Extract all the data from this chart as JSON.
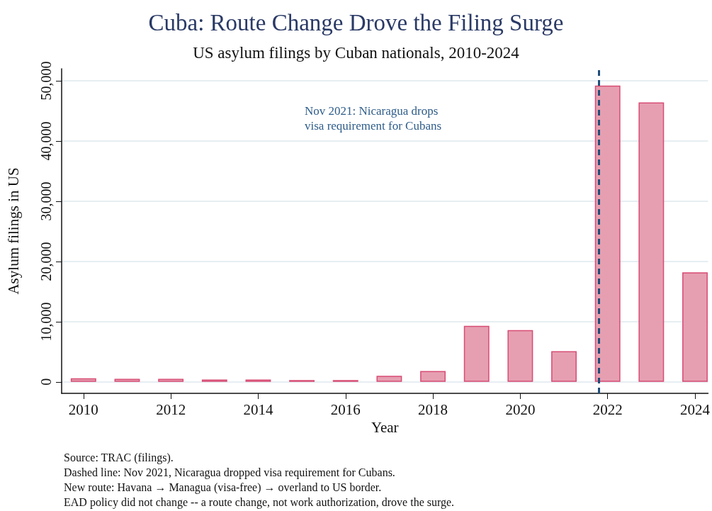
{
  "chart_data": {
    "type": "bar",
    "title": "Cuba: Route Change Drove the Filing Surge",
    "subtitle": "US asylum filings by Cuban nationals, 2010-2024",
    "xlabel": "Year",
    "ylabel": "Asylum filings in US",
    "x": [
      2010,
      2011,
      2012,
      2013,
      2014,
      2015,
      2016,
      2017,
      2018,
      2019,
      2020,
      2021,
      2022,
      2023,
      2024
    ],
    "series": [
      {
        "color": "#e59aad",
        "values": [
          600,
          500,
          500,
          400,
          400,
          300,
          300,
          1000,
          1800,
          9300,
          8600,
          5100,
          49200,
          46400,
          18200
        ]
      }
    ],
    "xlim": [
      2009.5,
      2024.3
    ],
    "xticks": [
      {
        "value": 2010,
        "label": "2010"
      },
      {
        "value": 2012,
        "label": "2012"
      },
      {
        "value": 2014,
        "label": "2014"
      },
      {
        "value": 2016,
        "label": "2016"
      },
      {
        "value": 2018,
        "label": "2018"
      },
      {
        "value": 2020,
        "label": "2020"
      },
      {
        "value": 2022,
        "label": "2022"
      },
      {
        "value": 2024,
        "label": "2024"
      }
    ],
    "ylim": [
      -1900,
      52000
    ],
    "yticks": [
      0,
      {
        "value": 10000,
        "label": "10,000"
      },
      {
        "value": 20000,
        "label": "20,000"
      },
      {
        "value": 30000,
        "label": "30,000"
      },
      {
        "value": 40000,
        "label": "40,000"
      },
      {
        "value": 50000,
        "label": "50,000"
      }
    ],
    "grid": "y",
    "ref_lines": [
      {
        "axis": "x",
        "value": 2021.8,
        "color": "#1f4e79",
        "line_style": "dashed"
      }
    ],
    "annotations": [
      "Nov 2021: Nicaragua drops\nvisa requirement for Cubans",
      "Source: TRAC (filings).",
      "Dashed line: Nov 2021, Nicaragua dropped visa requirement for Cubans.",
      "New route: Havana → Managua (visa-free) → overland to US border.",
      "EAD policy did not change -- a route change, not work authorization, drove the surge."
    ]
  }
}
